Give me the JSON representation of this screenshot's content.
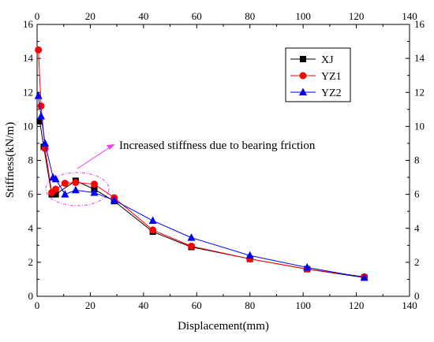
{
  "chart_data": {
    "type": "line",
    "xlabel": "Displacement(mm)",
    "ylabel": "Stiffness(kN/m)",
    "xlim": [
      0,
      140
    ],
    "ylim": [
      0,
      16
    ],
    "x_ticks": [
      "0",
      "20",
      "40",
      "60",
      "80",
      "100",
      "120",
      "140"
    ],
    "y_ticks": [
      "0",
      "2",
      "4",
      "6",
      "8",
      "10",
      "12",
      "14",
      "16"
    ],
    "grid": false,
    "mirror_axes": true,
    "legend_position": "top-right",
    "annotation": "Increased stiffness due to bearing friction",
    "series": [
      {
        "name": "XJ",
        "color": "#000000",
        "marker": "square",
        "x": [
          1.0,
          2.5,
          5.5,
          7.0,
          14.5,
          21.5,
          29.0,
          43.5,
          58.0,
          80.0,
          101.5,
          123.0
        ],
        "y": [
          10.3,
          8.8,
          6.0,
          6.0,
          6.8,
          6.3,
          5.6,
          3.8,
          2.9,
          2.2,
          1.6,
          1.1
        ]
      },
      {
        "name": "YZ1",
        "color": "#ff0000",
        "marker": "circle",
        "x": [
          0.5,
          1.5,
          3.0,
          5.5,
          7.0,
          10.5,
          14.5,
          21.5,
          29.0,
          43.5,
          58.0,
          80.0,
          101.5,
          123.0
        ],
        "y": [
          14.5,
          11.2,
          8.7,
          6.1,
          6.3,
          6.65,
          6.7,
          6.6,
          5.8,
          3.9,
          2.95,
          2.2,
          1.6,
          1.15
        ]
      },
      {
        "name": "YZ2",
        "color": "#0000ff",
        "marker": "triangle",
        "x": [
          0.5,
          1.5,
          3.0,
          6.0,
          7.0,
          10.5,
          14.5,
          21.5,
          29.0,
          43.5,
          58.0,
          80.0,
          101.5,
          123.0
        ],
        "y": [
          11.8,
          10.6,
          9.0,
          7.0,
          6.9,
          6.0,
          6.25,
          6.1,
          5.65,
          4.45,
          3.45,
          2.4,
          1.7,
          1.1
        ]
      }
    ]
  },
  "colors": {
    "annotation": "#ee44ee",
    "axis": "#000000"
  }
}
